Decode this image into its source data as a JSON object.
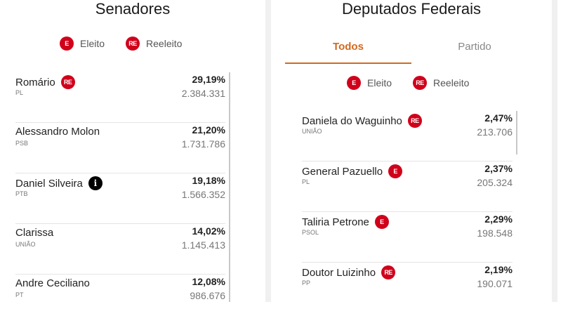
{
  "legend": {
    "eleito_badge": "E",
    "eleito": "Eleito",
    "reeleito_badge": "RE",
    "reeleito": "Reeleito"
  },
  "senadores": {
    "title": "Senadores",
    "rows": [
      {
        "name": "Romário",
        "party": "PL",
        "pct": "29,19%",
        "votes": "2.384.331",
        "badge": "RE"
      },
      {
        "name": "Alessandro Molon",
        "party": "PSB",
        "pct": "21,20%",
        "votes": "1.731.786",
        "badge": ""
      },
      {
        "name": "Daniel Silveira",
        "party": "PTB",
        "pct": "19,18%",
        "votes": "1.566.352",
        "badge": "i"
      },
      {
        "name": "Clarissa",
        "party": "UNIÃO",
        "pct": "14,02%",
        "votes": "1.145.413",
        "badge": ""
      },
      {
        "name": "Andre Ceciliano",
        "party": "PT",
        "pct": "12,08%",
        "votes": "986.676",
        "badge": ""
      }
    ]
  },
  "deputados": {
    "title": "Deputados Federais",
    "tabs": [
      "Todos",
      "Partido"
    ],
    "active_tab": "Todos",
    "rows": [
      {
        "name": "Daniela do Waguinho",
        "party": "UNIÃO",
        "pct": "2,47%",
        "votes": "213.706",
        "badge": "RE"
      },
      {
        "name": "General Pazuello",
        "party": "PL",
        "pct": "2,37%",
        "votes": "205.324",
        "badge": "E"
      },
      {
        "name": "Taliria Petrone",
        "party": "PSOL",
        "pct": "2,29%",
        "votes": "198.548",
        "badge": "E"
      },
      {
        "name": "Doutor Luizinho",
        "party": "PP",
        "pct": "2,19%",
        "votes": "190.071",
        "badge": "RE"
      }
    ]
  },
  "colors": {
    "accent": "#d0021b",
    "tab_active": "#d2691e"
  }
}
